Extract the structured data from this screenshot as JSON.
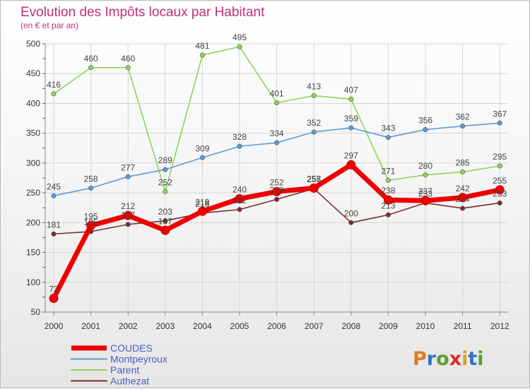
{
  "chart_data": {
    "type": "line",
    "title": "Evolution des Impôts locaux par Habitant",
    "subtitle": "(en € et par an)",
    "xlabel": "",
    "ylabel": "",
    "categories": [
      "2000",
      "2001",
      "2002",
      "2003",
      "2004",
      "2005",
      "2006",
      "2007",
      "2008",
      "2009",
      "2010",
      "2011",
      "2012"
    ],
    "ylim": [
      50,
      500
    ],
    "yticks": [
      50,
      100,
      150,
      200,
      250,
      300,
      350,
      400,
      450,
      500
    ],
    "grid": true,
    "legend_position": "bottom-left",
    "series": [
      {
        "name": "COUDES",
        "color": "#ee0000",
        "values": [
          73,
          195,
          212,
          187,
          219,
          240,
          252,
          258,
          297,
          238,
          237,
          242,
          255
        ]
      },
      {
        "name": "Montpeyroux",
        "color": "#5b9bd5",
        "values": [
          245,
          258,
          277,
          289,
          309,
          328,
          334,
          352,
          359,
          343,
          356,
          362,
          367
        ]
      },
      {
        "name": "Parent",
        "color": "#8fd45a",
        "values": [
          416,
          460,
          460,
          252,
          481,
          495,
          401,
          413,
          407,
          271,
          280,
          285,
          295
        ]
      },
      {
        "name": "Authezat",
        "color": "#7a2e2e",
        "values": [
          181,
          185,
          197,
          203,
          216,
          222,
          239,
          257,
          200,
          213,
          233,
          224,
          233
        ]
      }
    ]
  },
  "logo": {
    "text": "Proxiti"
  }
}
